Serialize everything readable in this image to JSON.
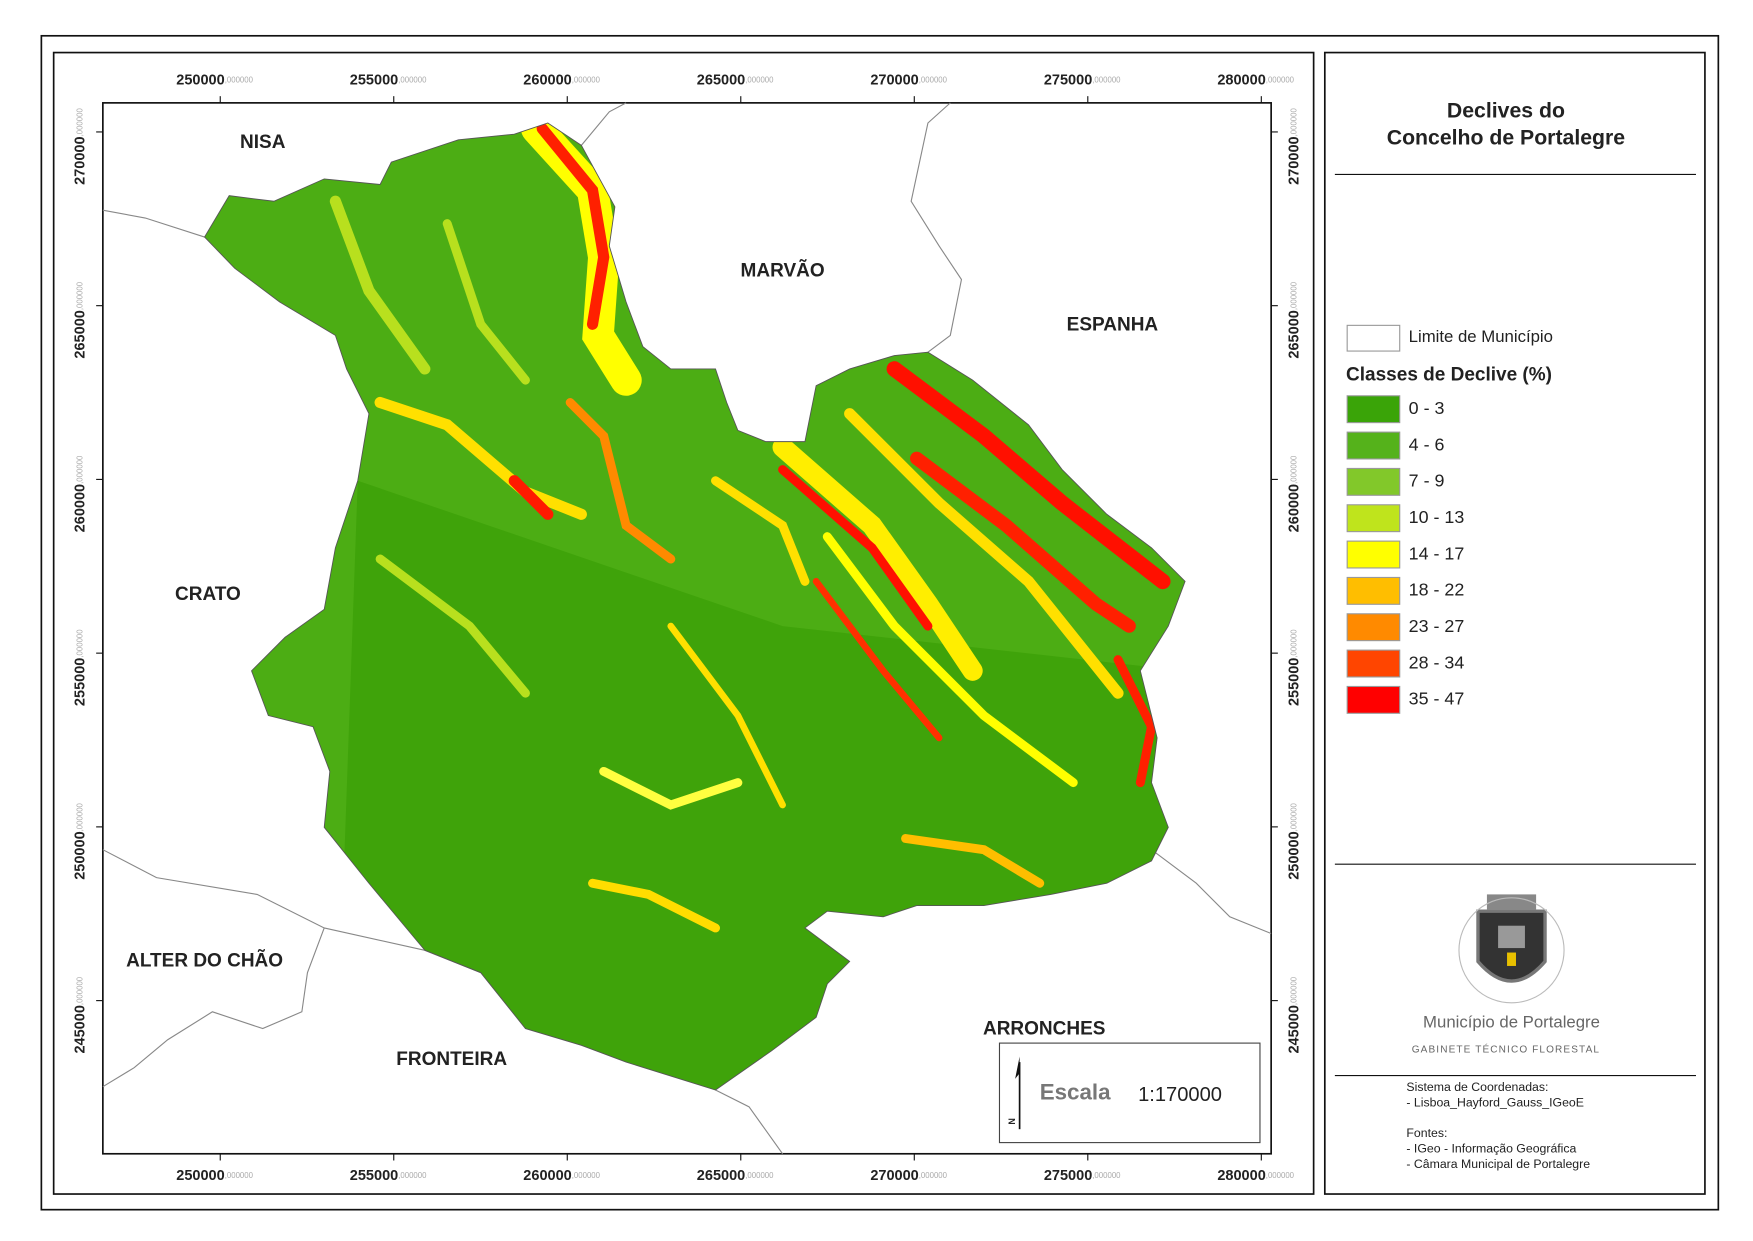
{
  "map": {
    "places": [
      "NISA",
      "MARVÃO",
      "ESPANHA",
      "CRATO",
      "ALTER DO CHÃO",
      "FRONTEIRA",
      "ARRONCHES"
    ],
    "x_ticks": [
      "250000",
      "255000",
      "260000",
      "265000",
      "270000",
      "275000",
      "280000"
    ],
    "y_ticks": [
      "270000",
      "265000",
      "260000",
      "255000",
      "250000",
      "245000"
    ],
    "tick_decimals": ",000000",
    "scale_label": "Escala",
    "scale_value": "1:170000",
    "north": "N"
  },
  "legend": {
    "title_lines": [
      "Declives do",
      "Concelho de Portalegre"
    ],
    "boundary": "Limite de Município",
    "classes_title": "Classes de Declive (%)",
    "classes": [
      {
        "label": "0 - 3",
        "color": "#3aa408"
      },
      {
        "label": "4 - 6",
        "color": "#55b21b"
      },
      {
        "label": "7 - 9",
        "color": "#82c82a"
      },
      {
        "label": "10 - 13",
        "color": "#bfe41c"
      },
      {
        "label": "14 - 17",
        "color": "#ffff00"
      },
      {
        "label": "18 - 22",
        "color": "#ffbe00"
      },
      {
        "label": "23 - 27",
        "color": "#ff8a00"
      },
      {
        "label": "28 - 34",
        "color": "#ff4500"
      },
      {
        "label": "35 - 47",
        "color": "#ff0000"
      }
    ],
    "org": "Município de Portalegre",
    "dept": "GABINETE TÉCNICO FLORESTAL",
    "notes": [
      "Sistema de Coordenadas:",
      "- Lisboa_Hayford_Gauss_IGeoE",
      "Fontes:",
      "- IGeo - Informação Geográfica",
      "- Câmara Municipal de Portalegre"
    ]
  }
}
